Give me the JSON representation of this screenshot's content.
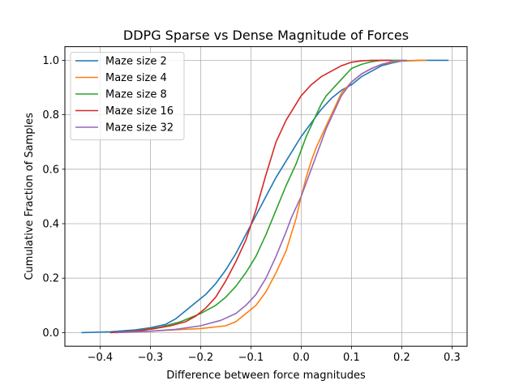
{
  "chart_data": {
    "type": "line",
    "title": "DDPG Sparse vs Dense Magnitude of Forces",
    "xlabel": "Difference between force magnitudes",
    "ylabel": "Cumulative Fraction of Samples",
    "xlim": [
      -0.47,
      0.33
    ],
    "ylim": [
      -0.05,
      1.05
    ],
    "xticks": [
      -0.4,
      -0.3,
      -0.2,
      -0.1,
      0.0,
      0.1,
      0.2,
      0.3
    ],
    "xtick_labels": [
      "−0.4",
      "−0.3",
      "−0.2",
      "−0.1",
      "0.0",
      "0.1",
      "0.2",
      "0.3"
    ],
    "yticks": [
      0.0,
      0.2,
      0.4,
      0.6,
      0.8,
      1.0
    ],
    "ytick_labels": [
      "0.0",
      "0.2",
      "0.4",
      "0.6",
      "0.8",
      "1.0"
    ],
    "grid": true,
    "legend_position": "top-left",
    "series": [
      {
        "name": "Maze size 2",
        "color": "#1f77b4",
        "x": [
          -0.437,
          -0.38,
          -0.33,
          -0.3,
          -0.27,
          -0.25,
          -0.23,
          -0.21,
          -0.19,
          -0.17,
          -0.15,
          -0.13,
          -0.11,
          -0.09,
          -0.07,
          -0.05,
          -0.03,
          -0.01,
          0.0,
          0.02,
          0.04,
          0.06,
          0.08,
          0.1,
          0.12,
          0.14,
          0.16,
          0.18,
          0.2,
          0.24,
          0.28,
          0.293
        ],
        "y": [
          0.0,
          0.003,
          0.01,
          0.018,
          0.03,
          0.05,
          0.08,
          0.11,
          0.14,
          0.18,
          0.23,
          0.29,
          0.36,
          0.43,
          0.5,
          0.57,
          0.63,
          0.69,
          0.72,
          0.77,
          0.82,
          0.86,
          0.89,
          0.91,
          0.94,
          0.96,
          0.98,
          0.99,
          0.997,
          1.0,
          1.0,
          1.0
        ]
      },
      {
        "name": "Maze size 4",
        "color": "#ff7f0e",
        "x": [
          -0.37,
          -0.3,
          -0.25,
          -0.2,
          -0.15,
          -0.13,
          -0.11,
          -0.09,
          -0.07,
          -0.05,
          -0.03,
          -0.01,
          0.0,
          0.01,
          0.02,
          0.03,
          0.04,
          0.05,
          0.06,
          0.07,
          0.08,
          0.1,
          0.12,
          0.14,
          0.16,
          0.18,
          0.2,
          0.23,
          0.25
        ],
        "y": [
          0.0,
          0.005,
          0.01,
          0.015,
          0.025,
          0.04,
          0.07,
          0.1,
          0.15,
          0.22,
          0.3,
          0.42,
          0.5,
          0.57,
          0.63,
          0.68,
          0.72,
          0.76,
          0.8,
          0.84,
          0.88,
          0.92,
          0.95,
          0.97,
          0.985,
          0.993,
          0.998,
          1.0,
          1.0
        ]
      },
      {
        "name": "Maze size 8",
        "color": "#2ca02c",
        "x": [
          -0.37,
          -0.32,
          -0.28,
          -0.24,
          -0.2,
          -0.17,
          -0.15,
          -0.13,
          -0.11,
          -0.09,
          -0.07,
          -0.05,
          -0.03,
          -0.01,
          0.0,
          0.01,
          0.02,
          0.03,
          0.04,
          0.05,
          0.06,
          0.07,
          0.08,
          0.09,
          0.1,
          0.12,
          0.14,
          0.16,
          0.18,
          0.2
        ],
        "y": [
          0.0,
          0.008,
          0.02,
          0.04,
          0.07,
          0.1,
          0.13,
          0.17,
          0.22,
          0.28,
          0.36,
          0.45,
          0.54,
          0.62,
          0.67,
          0.72,
          0.76,
          0.8,
          0.84,
          0.87,
          0.89,
          0.91,
          0.93,
          0.95,
          0.97,
          0.985,
          0.995,
          1.0,
          1.0,
          1.0
        ]
      },
      {
        "name": "Maze size 16",
        "color": "#d62728",
        "x": [
          -0.38,
          -0.33,
          -0.29,
          -0.26,
          -0.23,
          -0.21,
          -0.19,
          -0.17,
          -0.15,
          -0.13,
          -0.11,
          -0.09,
          -0.07,
          -0.05,
          -0.03,
          -0.01,
          0.0,
          0.01,
          0.02,
          0.04,
          0.06,
          0.08,
          0.1,
          0.12,
          0.14,
          0.16,
          0.18
        ],
        "y": [
          0.0,
          0.005,
          0.015,
          0.025,
          0.04,
          0.06,
          0.09,
          0.13,
          0.19,
          0.26,
          0.34,
          0.45,
          0.58,
          0.7,
          0.78,
          0.84,
          0.87,
          0.89,
          0.91,
          0.94,
          0.96,
          0.98,
          0.993,
          0.998,
          1.0,
          1.0,
          1.0
        ]
      },
      {
        "name": "Maze size 32",
        "color": "#9467bd",
        "x": [
          -0.37,
          -0.3,
          -0.25,
          -0.2,
          -0.16,
          -0.13,
          -0.11,
          -0.09,
          -0.07,
          -0.05,
          -0.03,
          -0.02,
          -0.01,
          0.0,
          0.01,
          0.02,
          0.03,
          0.04,
          0.05,
          0.06,
          0.07,
          0.08,
          0.1,
          0.12,
          0.14,
          0.16,
          0.18,
          0.2,
          0.21
        ],
        "y": [
          0.0,
          0.005,
          0.012,
          0.025,
          0.045,
          0.07,
          0.1,
          0.14,
          0.2,
          0.28,
          0.37,
          0.42,
          0.46,
          0.5,
          0.55,
          0.6,
          0.65,
          0.7,
          0.75,
          0.79,
          0.83,
          0.87,
          0.92,
          0.95,
          0.97,
          0.985,
          0.995,
          1.0,
          1.0
        ]
      }
    ]
  }
}
